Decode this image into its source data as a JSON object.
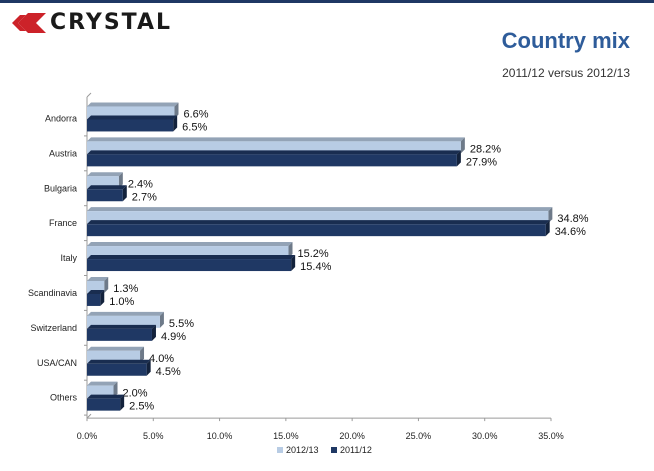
{
  "brand": {
    "logo_text": "CRYSTAL"
  },
  "header": {
    "title": "Country mix",
    "subtitle": "2011/12 versus 2012/13"
  },
  "colors": {
    "series_2012_13": "#b8cce4",
    "series_2011_12": "#1f3864",
    "title": "#2e5c9a",
    "logo_red": "#cc2229"
  },
  "chart_data": {
    "type": "bar",
    "orientation": "horizontal",
    "categories": [
      "Andorra",
      "Austria",
      "Bulgaria",
      "France",
      "Italy",
      "Scandinavia",
      "Switzerland",
      "USA/CAN",
      "Others"
    ],
    "series": [
      {
        "name": "2012/13",
        "values": [
          6.6,
          28.2,
          2.4,
          34.8,
          15.2,
          1.3,
          5.5,
          4.0,
          2.0
        ],
        "labels": [
          "6.6%",
          "28.2%",
          "2.4%",
          "34.8%",
          "15.2%",
          "1.3%",
          "5.5%",
          "4.0%",
          "2.0%"
        ]
      },
      {
        "name": "2011/12",
        "values": [
          6.5,
          27.9,
          2.7,
          34.6,
          15.4,
          1.0,
          4.9,
          4.5,
          2.5
        ],
        "labels": [
          "6.5%",
          "27.9%",
          "2.7%",
          "34.6%",
          "15.4%",
          "1.0%",
          "4.9%",
          "4.5%",
          "2.5%"
        ]
      }
    ],
    "xlim": [
      0,
      35
    ],
    "xticks": [
      "0.0%",
      "5.0%",
      "10.0%",
      "15.0%",
      "20.0%",
      "25.0%",
      "30.0%",
      "35.0%"
    ],
    "legend": "bottom-center",
    "grid": false
  }
}
